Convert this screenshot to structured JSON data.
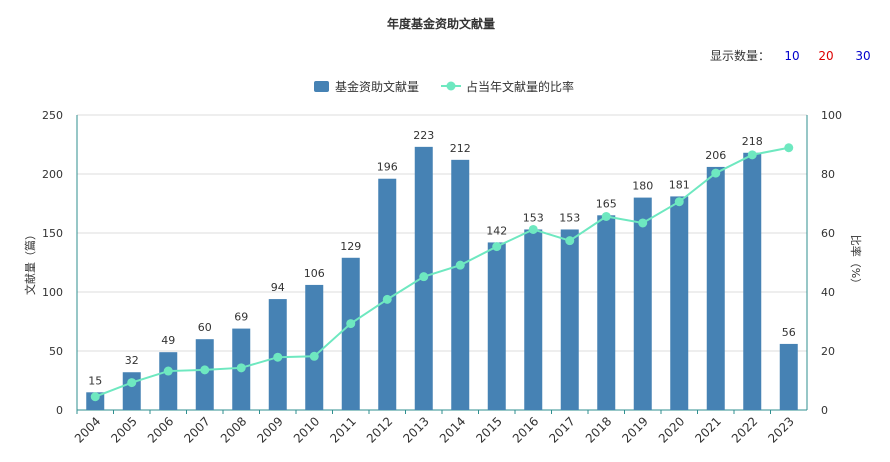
{
  "controls": {
    "label": "显示数量：",
    "options": [
      {
        "text": "10",
        "color": "#0000cc"
      },
      {
        "text": "20",
        "color": "#dd0000"
      },
      {
        "text": "30",
        "color": "#0000cc"
      }
    ]
  },
  "chart_data": {
    "type": "bar",
    "title": "年度基金资助文献量",
    "categories": [
      "2004",
      "2005",
      "2006",
      "2007",
      "2008",
      "2009",
      "2010",
      "2011",
      "2012",
      "2013",
      "2014",
      "2015",
      "2016",
      "2017",
      "2018",
      "2019",
      "2020",
      "2021",
      "2022",
      "2023"
    ],
    "series": [
      {
        "name": "基金资助文献量",
        "type": "bar",
        "axis": "left",
        "color": "#4682b4",
        "values": [
          15,
          32,
          49,
          60,
          69,
          94,
          106,
          129,
          196,
          223,
          212,
          142,
          153,
          153,
          165,
          180,
          181,
          206,
          218,
          56
        ],
        "labels": [
          "15",
          "32",
          "49",
          "60",
          "69",
          "94",
          "106",
          "129",
          "196",
          "223",
          "212",
          "142",
          "153",
          "153",
          "165",
          "180",
          "181",
          "206",
          "218",
          "56"
        ]
      },
      {
        "name": "占当年文献量的比率",
        "type": "line",
        "axis": "right",
        "color": "#6ee8c0",
        "values": [
          4.5,
          9.3,
          13.2,
          13.6,
          14.3,
          17.9,
          18.2,
          29.3,
          37.5,
          45.2,
          49.1,
          55.4,
          61.2,
          57.4,
          65.6,
          63.4,
          70.6,
          80.3,
          86.5,
          88.9
        ]
      }
    ],
    "ylabel": "文献量（篇）",
    "ylim": [
      0,
      250
    ],
    "yticks": [
      "0",
      "50",
      "100",
      "150",
      "200",
      "250"
    ],
    "y2label": "比率（%）",
    "y2lim": [
      0,
      100
    ],
    "y2ticks": [
      "0",
      "20",
      "40",
      "60",
      "80",
      "100"
    ],
    "grid": true,
    "legend_position": "top-center"
  }
}
